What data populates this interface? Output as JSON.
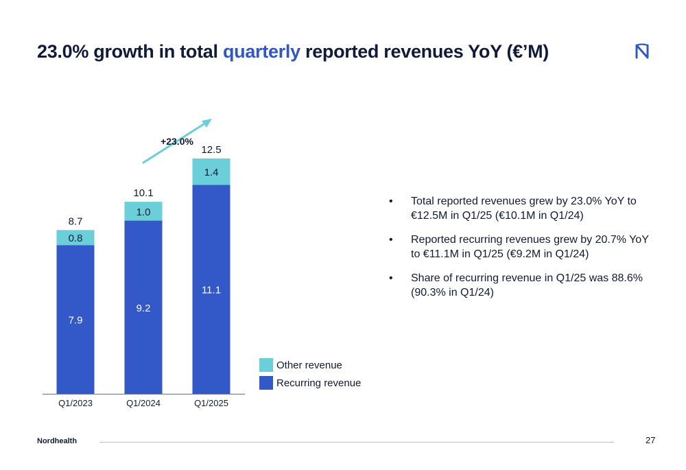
{
  "title": {
    "part1": "23.0% growth in total ",
    "highlight": "quarterly",
    "part2": " reported revenues YoY (€’M)"
  },
  "logo": {
    "icon": "nordhealth-logo-icon"
  },
  "colors": {
    "recurring": "#3358c8",
    "other": "#6acfd8",
    "arrow": "#6acfd8",
    "text": "#101a3a",
    "highlight": "#2f57c9"
  },
  "growth_label": "+23.0%",
  "bullets": [
    "Total reported revenues grew by 23.0% YoY to €12.5M in Q1/25 (€10.1M in Q1/24)",
    "Reported recurring revenues grew by 20.7% YoY to €11.1M in Q1/25 (€9.2M in Q1/24)",
    "Share of recurring revenue in Q1/25 was 88.6% (90.3% in Q1/24)"
  ],
  "footer": {
    "brand": "Nordhealth",
    "page": "27"
  },
  "chart_data": {
    "type": "bar",
    "stacked": true,
    "categories": [
      "Q1/2023",
      "Q1/2024",
      "Q1/2025"
    ],
    "series": [
      {
        "name": "Recurring revenue",
        "values": [
          7.9,
          9.2,
          11.1
        ],
        "labels": [
          "7.9",
          "9.2",
          "11.1"
        ]
      },
      {
        "name": "Other revenue",
        "values": [
          0.8,
          1.0,
          1.4
        ],
        "labels": [
          "0.8",
          "1.0",
          "1.4"
        ]
      }
    ],
    "totals": [
      "8.7",
      "10.1",
      "12.5"
    ],
    "legend": [
      "Other revenue",
      "Recurring revenue"
    ],
    "grid": false,
    "ylim": [
      0,
      12.5
    ]
  }
}
